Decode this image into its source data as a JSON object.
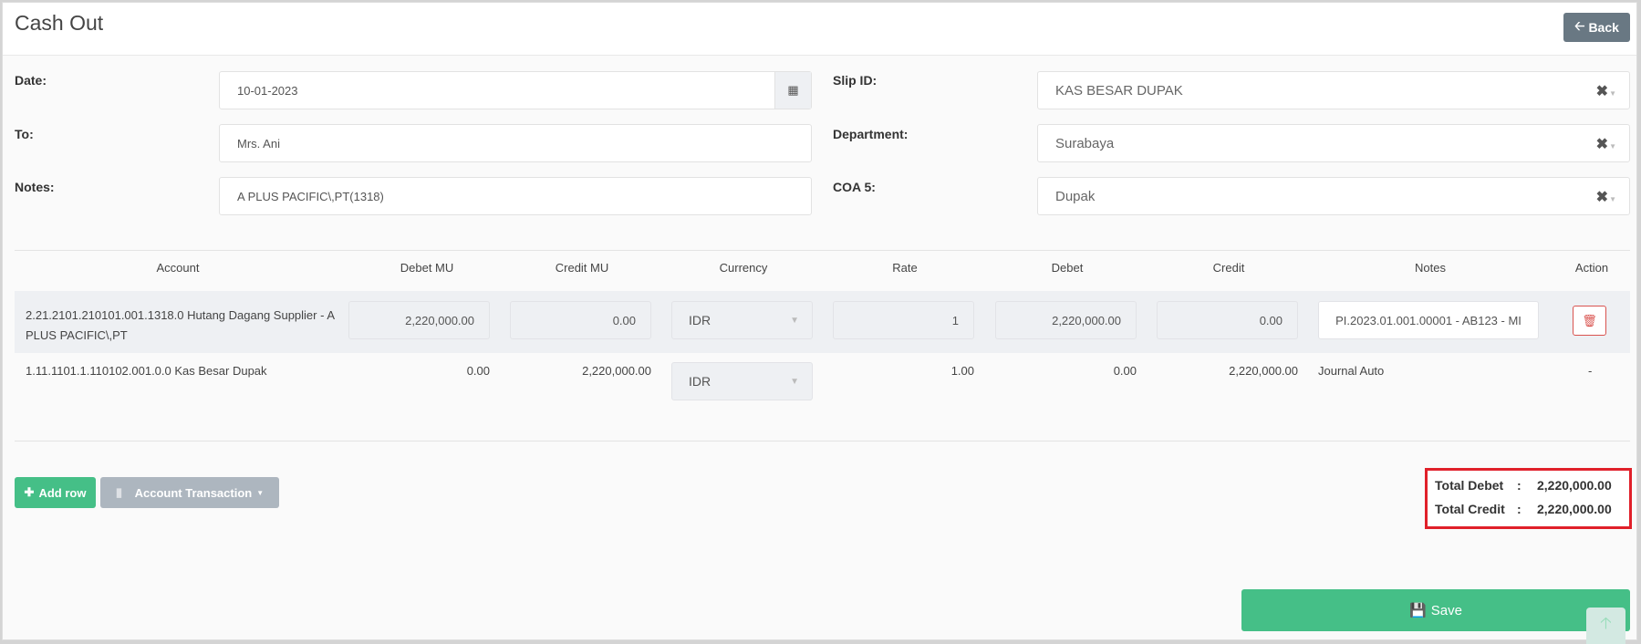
{
  "header": {
    "title": "Cash Out",
    "back_label": "Back"
  },
  "form": {
    "date": {
      "label": "Date:",
      "value": "10-01-2023"
    },
    "to": {
      "label": "To:",
      "value": "Mrs. Ani"
    },
    "notes": {
      "label": "Notes:",
      "value": "A PLUS PACIFIC\\,PT(1318)"
    },
    "slip_id": {
      "label": "Slip ID:",
      "value": "KAS BESAR DUPAK"
    },
    "department": {
      "label": "Department:",
      "value": "Surabaya"
    },
    "coa5": {
      "label": "COA 5:",
      "value": "Dupak"
    }
  },
  "table": {
    "headers": [
      "Account",
      "Debet MU",
      "Credit MU",
      "Currency",
      "Rate",
      "Debet",
      "Credit",
      "Notes",
      "Action"
    ],
    "rows": [
      {
        "account": "2.21.2101.210101.001.1318.0 Hutang Dagang Supplier - A PLUS PACIFIC\\,PT",
        "debet_mu": "2,220,000.00",
        "credit_mu": "0.00",
        "currency": "IDR",
        "rate": "1",
        "debet": "2,220,000.00",
        "credit": "0.00",
        "notes": "PI.2023.01.001.00001 - AB123 - MI"
      },
      {
        "account": "1.11.1101.1.110102.001.0.0 Kas Besar Dupak",
        "debet_mu": "0.00",
        "credit_mu": "2,220,000.00",
        "currency": "IDR",
        "rate": "1.00",
        "debet": "0.00",
        "credit": "2,220,000.00",
        "notes": "Journal Auto",
        "action": "-"
      }
    ]
  },
  "actions": {
    "add_row": "Add row",
    "account_transaction": "Account Transaction",
    "save": "Save"
  },
  "totals": {
    "debet_label": "Total Debet",
    "debet_value": "2,220,000.00",
    "credit_label": "Total Credit",
    "credit_value": "2,220,000.00",
    "sep": ":"
  },
  "colors": {
    "primary_green": "#45bf87",
    "back_gray": "#697883",
    "highlight_red": "#e0202a"
  }
}
